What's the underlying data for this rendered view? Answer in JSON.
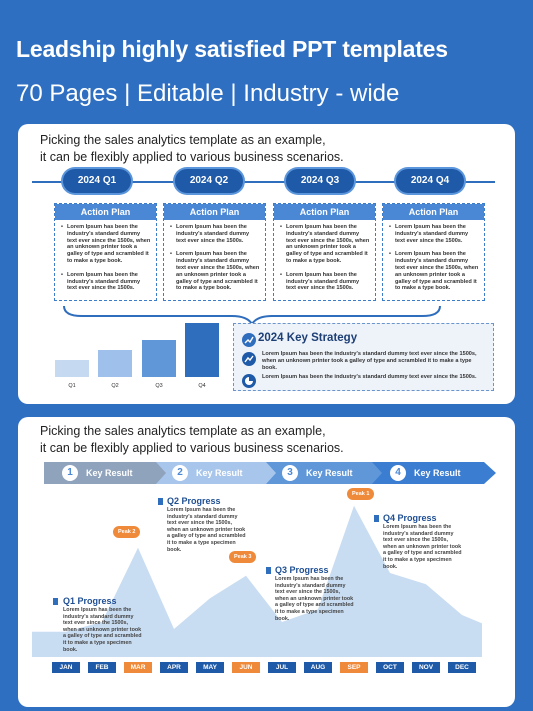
{
  "hero": {
    "title": "Leadship highly satisfied PPT templates",
    "subtitle": "70 Pages | Editable | Industry - wide"
  },
  "colors": {
    "background": "#2e6fc2",
    "primary": "#1f5aa8",
    "accent": "#ef8a3a",
    "light": "#c5d9f1"
  },
  "panel1": {
    "intro_line1": "Picking the sales analytics template as an example,",
    "intro_line2": "it can be flexibly applied to various business scenarios.",
    "quarters": [
      "2024 Q1",
      "2024 Q2",
      "2024 Q3",
      "2024 Q4"
    ],
    "action_plans": [
      {
        "title": "Action Plan",
        "p1": "Lorem Ipsum has been the industry's standard dummy text ever since the 1500s, when an unknown printer took a galley of type and scrambled it to make a type book.",
        "p2": "Lorem Ipsum has been the industry's standard dummy text ever since the 1500s."
      },
      {
        "title": "Action Plan",
        "p1": "Lorem Ipsum has been the industry's standard dummy text ever since the 1500s.",
        "p2": "Lorem Ipsum has been the industry's standard dummy text ever since the 1500s, when an unknown printer took a galley of type and scrambled it to make a type book."
      },
      {
        "title": "Action Plan",
        "p1": "Lorem Ipsum has been the industry's standard dummy text ever since the 1500s, when an unknown printer took a galley of type and scrambled it to make a type book.",
        "p2": "Lorem Ipsum has been the industry's standard dummy text ever since the 1500s."
      },
      {
        "title": "Action Plan",
        "p1": "Lorem Ipsum has been the industry's standard dummy text ever since the 1500s.",
        "p2": "Lorem Ipsum has been the industry's standard dummy text ever since the 1500s, when an unknown printer took a galley of type and scrambled it to make a type book."
      }
    ],
    "bar_labels": [
      "Q1",
      "Q2",
      "Q3",
      "Q4"
    ],
    "bar_values": [
      1,
      1.55,
      2.15,
      3.1
    ],
    "strategy": {
      "title": "2024 Key Strategy",
      "item1": "Lorem Ipsum has been the industry's standard dummy text ever since the 1500s, when an unknown printer took a galley of type and scrambled it to make a type book.",
      "item2": "Lorem Ipsum has been the industry's standard dummy text ever since the 1500s."
    }
  },
  "panel2": {
    "intro_line1": "Picking the sales analytics template as an example,",
    "intro_line2": "it can be flexibly applied to various business scenarios.",
    "key_results": [
      {
        "num": "1",
        "label": "Key Result"
      },
      {
        "num": "2",
        "label": "Key Result"
      },
      {
        "num": "3",
        "label": "Key Result"
      },
      {
        "num": "4",
        "label": "Key Result"
      }
    ],
    "peaks": [
      "Peak 1",
      "Peak 2",
      "Peak 3"
    ],
    "progress": [
      {
        "title": "Q1 Progress",
        "text": "Lorem Ipsum has been the industry's standard dummy text ever since the 1500s, when an unknown printer took a galley of type and scrambled it to make a type specimen book."
      },
      {
        "title": "Q2 Progress",
        "text": "Lorem Ipsum has been the industry's standard dummy text ever since the 1500s, when an unknown printer took a galley of type and scrambled it to make a type specimen book."
      },
      {
        "title": "Q3 Progress",
        "text": "Lorem Ipsum has been the industry's standard dummy text ever since the 1500s, when an unknown printer took a galley of type and scrambled it to make a type specimen book."
      },
      {
        "title": "Q4 Progress",
        "text": "Lorem Ipsum has been the industry's standard dummy text ever since the 1500s, when an unknown printer took a galley of type and scrambled it to make a type specimen book."
      }
    ],
    "months": [
      "JAN",
      "FEB",
      "MAR",
      "APR",
      "MAY",
      "JUN",
      "JUL",
      "AUG",
      "SEP",
      "OCT",
      "NOV",
      "DEC"
    ],
    "month_values": [
      18,
      25,
      78,
      20,
      42,
      58,
      25,
      34,
      108,
      60,
      52,
      30
    ]
  }
}
